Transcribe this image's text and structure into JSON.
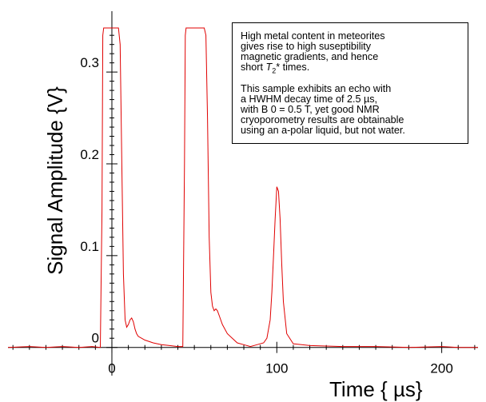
{
  "chart_data": {
    "type": "line",
    "xlabel": "Time { µs}",
    "ylabel": "Signal Amplitude {V}",
    "xlim": [
      -63,
      222
    ],
    "ylim": [
      -0.002,
      0.348
    ],
    "x_ticks": [
      0,
      100,
      200
    ],
    "x_tick_labels": [
      "0",
      "100",
      "200"
    ],
    "y_ticks": [
      0,
      0.1,
      0.2,
      0.3
    ],
    "y_tick_labels": [
      "0",
      "0.1",
      "0.2",
      "0.3"
    ],
    "grid": false,
    "line_color": "#e00000",
    "series": [
      {
        "x": [
          -63,
          -50,
          -40,
          -30,
          -20,
          -12,
          -7,
          -6,
          -5.5,
          -5,
          4,
          5,
          6,
          7,
          8,
          9,
          10,
          11,
          12,
          13,
          14,
          15,
          16,
          18,
          20,
          25,
          30,
          35,
          40,
          43,
          44,
          44.5,
          45,
          56,
          57,
          58,
          59,
          60,
          61,
          62,
          63,
          64,
          65,
          67,
          70,
          73,
          76,
          80,
          84,
          88,
          92,
          94,
          96,
          97,
          98,
          99,
          100,
          101,
          102,
          103,
          104,
          106,
          110,
          120,
          140,
          160,
          180,
          200,
          210,
          222
        ],
        "y": [
          0.0,
          0.001,
          0.0,
          0.001,
          0.0,
          0.001,
          0.0,
          0.15,
          0.34,
          0.348,
          0.348,
          0.33,
          0.2,
          0.08,
          0.03,
          0.022,
          0.025,
          0.03,
          0.032,
          0.028,
          0.02,
          0.015,
          0.012,
          0.01,
          0.008,
          0.005,
          0.003,
          0.002,
          0.001,
          0.001,
          0.2,
          0.34,
          0.348,
          0.348,
          0.34,
          0.25,
          0.12,
          0.06,
          0.045,
          0.04,
          0.042,
          0.04,
          0.035,
          0.025,
          0.015,
          0.01,
          0.005,
          0.003,
          0.001,
          0.003,
          0.005,
          0.01,
          0.03,
          0.06,
          0.1,
          0.14,
          0.175,
          0.17,
          0.14,
          0.09,
          0.05,
          0.015,
          0.004,
          0.002,
          0.001,
          0.001,
          0.0,
          0.001,
          0.0,
          0.0
        ]
      }
    ]
  },
  "annotation": {
    "paragraph1_before": "High metal content in meteorites\ngives rise to high suseptibility\nmagnetic gradients, and hence\nshort ",
    "t2_symbol": "T",
    "t2_subscript": "2",
    "paragraph1_after": "* times.",
    "paragraph2": "This sample exhibits an echo with\na HWHM decay time of 2.5     µs,\nwith B 0  = 0.5 T, yet good NMR\ncryoporometry results are obtainable\nusing an a-polar liquid, but not water."
  }
}
